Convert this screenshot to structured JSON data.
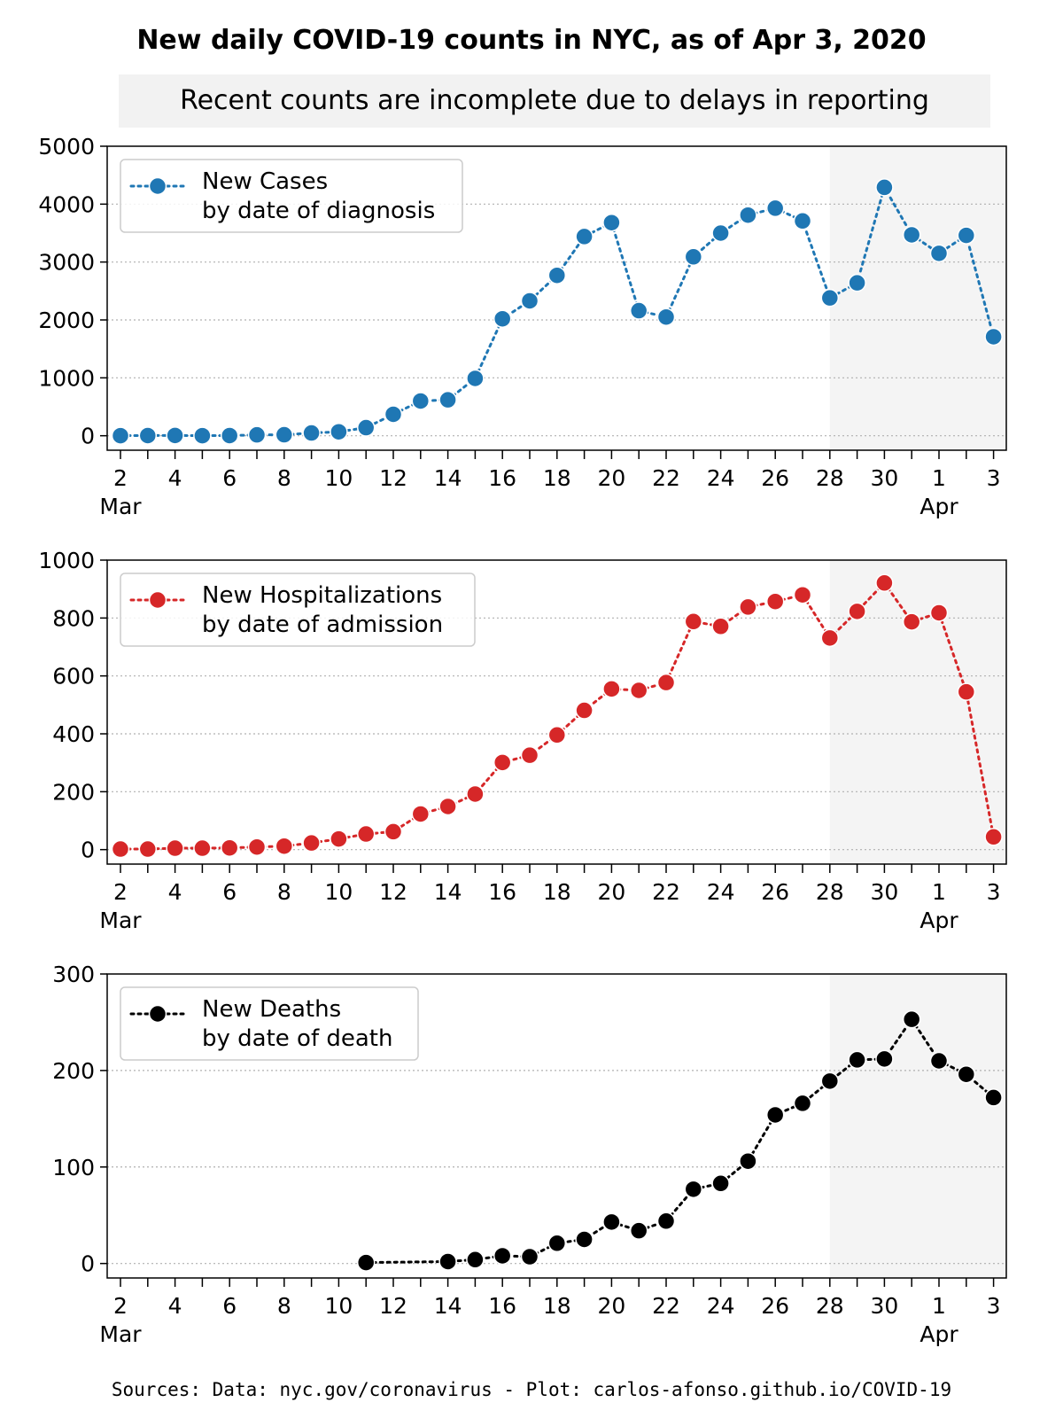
{
  "title": "New daily COVID-19 counts in NYC, as of Apr 3, 2020",
  "subtitle": "Recent counts are incomplete due to delays in reporting",
  "footer": "Sources: Data: nyc.gov/coronavirus - Plot: carlos-afonso.github.io/COVID-19",
  "chart_data": [
    {
      "type": "line",
      "x": [
        "Mar 2",
        "Mar 3",
        "Mar 4",
        "Mar 5",
        "Mar 6",
        "Mar 7",
        "Mar 8",
        "Mar 9",
        "Mar 10",
        "Mar 11",
        "Mar 12",
        "Mar 13",
        "Mar 14",
        "Mar 15",
        "Mar 16",
        "Mar 17",
        "Mar 18",
        "Mar 19",
        "Mar 20",
        "Mar 21",
        "Mar 22",
        "Mar 23",
        "Mar 24",
        "Mar 25",
        "Mar 26",
        "Mar 27",
        "Mar 28",
        "Mar 29",
        "Mar 30",
        "Mar 31",
        "Apr 1",
        "Apr 2",
        "Apr 3"
      ],
      "series": [
        {
          "name": "New Cases\nby date of diagnosis",
          "color": "#1f77b4",
          "values": [
            1,
            3,
            5,
            1,
            3,
            15,
            17,
            48,
            68,
            140,
            370,
            600,
            620,
            990,
            2020,
            2330,
            2770,
            3440,
            3680,
            2160,
            2050,
            3090,
            3500,
            3810,
            3930,
            3710,
            2380,
            2640,
            4290,
            3470,
            3150,
            3460,
            1710
          ]
        }
      ],
      "legend": [
        "New Cases",
        "by date of diagnosis"
      ],
      "yticks": [
        "0",
        "1000",
        "2000",
        "3000",
        "4000",
        "5000"
      ],
      "ylim": [
        -250,
        5000
      ],
      "xtick_labels": [
        "2",
        "4",
        "6",
        "8",
        "10",
        "12",
        "14",
        "16",
        "18",
        "20",
        "22",
        "24",
        "26",
        "28",
        "30",
        "1",
        "3"
      ],
      "month_labels": [
        "Mar",
        "Apr"
      ],
      "shaded_from": "Mar 28",
      "grid": "y dotted",
      "legend_position": "upper-left"
    },
    {
      "type": "line",
      "x": [
        "Mar 2",
        "Mar 3",
        "Mar 4",
        "Mar 5",
        "Mar 6",
        "Mar 7",
        "Mar 8",
        "Mar 9",
        "Mar 10",
        "Mar 11",
        "Mar 12",
        "Mar 13",
        "Mar 14",
        "Mar 15",
        "Mar 16",
        "Mar 17",
        "Mar 18",
        "Mar 19",
        "Mar 20",
        "Mar 21",
        "Mar 22",
        "Mar 23",
        "Mar 24",
        "Mar 25",
        "Mar 26",
        "Mar 27",
        "Mar 28",
        "Mar 29",
        "Mar 30",
        "Mar 31",
        "Apr 1",
        "Apr 2",
        "Apr 3"
      ],
      "series": [
        {
          "name": "New Hospitalizations\nby date of admission",
          "color": "#d62728",
          "values": [
            2,
            2,
            5,
            5,
            6,
            9,
            12,
            23,
            37,
            54,
            62,
            123,
            149,
            192,
            301,
            326,
            396,
            481,
            555,
            550,
            577,
            788,
            771,
            838,
            857,
            880,
            731,
            823,
            921,
            787,
            818,
            545,
            44
          ]
        }
      ],
      "legend": [
        "New Hospitalizations",
        "by date of admission"
      ],
      "yticks": [
        "0",
        "200",
        "400",
        "600",
        "800",
        "1000"
      ],
      "ylim": [
        -50,
        1000
      ],
      "xtick_labels": [
        "2",
        "4",
        "6",
        "8",
        "10",
        "12",
        "14",
        "16",
        "18",
        "20",
        "22",
        "24",
        "26",
        "28",
        "30",
        "1",
        "3"
      ],
      "month_labels": [
        "Mar",
        "Apr"
      ],
      "shaded_from": "Mar 28",
      "grid": "y dotted",
      "legend_position": "upper-left"
    },
    {
      "type": "line",
      "x": [
        "Mar 11",
        "Mar 14",
        "Mar 15",
        "Mar 16",
        "Mar 17",
        "Mar 18",
        "Mar 19",
        "Mar 20",
        "Mar 21",
        "Mar 22",
        "Mar 23",
        "Mar 24",
        "Mar 25",
        "Mar 26",
        "Mar 27",
        "Mar 28",
        "Mar 29",
        "Mar 30",
        "Mar 31",
        "Apr 1",
        "Apr 2",
        "Apr 3"
      ],
      "series": [
        {
          "name": "New Deaths\nby date of death",
          "color": "#000000",
          "values": [
            1,
            2,
            4,
            8,
            7,
            21,
            25,
            43,
            34,
            44,
            77,
            83,
            106,
            154,
            166,
            189,
            211,
            212,
            253,
            210,
            196,
            172
          ]
        }
      ],
      "legend": [
        "New Deaths",
        "by date of death"
      ],
      "yticks": [
        "0",
        "100",
        "200",
        "300"
      ],
      "ylim": [
        -15,
        300
      ],
      "xtick_labels": [
        "2",
        "4",
        "6",
        "8",
        "10",
        "12",
        "14",
        "16",
        "18",
        "20",
        "22",
        "24",
        "26",
        "28",
        "30",
        "1",
        "3"
      ],
      "month_labels": [
        "Mar",
        "Apr"
      ],
      "shaded_from": "Mar 28",
      "grid": "y dotted",
      "legend_position": "upper-left"
    }
  ]
}
